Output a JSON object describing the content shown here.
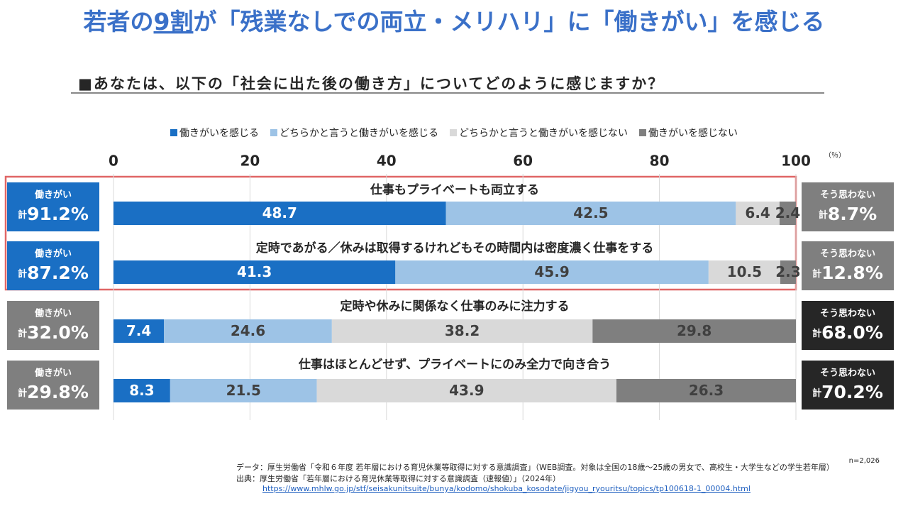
{
  "header": {
    "title_parts": [
      "若者の",
      "9割",
      "が「残業なしでの両立・メリハリ」に「働きがい」を感じる"
    ]
  },
  "chart_data": {
    "type": "bar",
    "orientation": "horizontal",
    "stacked": true,
    "title": "■あなたは、以下の「社会に出た後の働き方」についてどのように感じますか？",
    "categories": [
      "仕事もプライベートも両立する",
      "定時であがる／休みは取得するけれどもその時間内は密度濃く仕事をする",
      "定時や休みに関係なく仕事のみに注力する",
      "仕事はほとんどせず、プライベートにのみ全力で向き合う"
    ],
    "series": [
      {
        "name": "働きがいを感じる",
        "color": "#1a6fc4",
        "label_color": "#ffffff",
        "values": [
          48.7,
          41.3,
          7.4,
          8.3
        ]
      },
      {
        "name": "どちらかと言うと働きがいを感じる",
        "color": "#9dc3e6",
        "label_color": "#404040",
        "values": [
          42.5,
          45.9,
          24.6,
          21.5
        ]
      },
      {
        "name": "どちらかと言うと働きがいを感じない",
        "color": "#d9d9d9",
        "label_color": "#404040",
        "values": [
          6.4,
          10.5,
          38.2,
          43.9
        ]
      },
      {
        "name": "働きがいを感じない",
        "color": "#7f7f7f",
        "label_color": "#404040",
        "values": [
          2.4,
          2.3,
          29.8,
          26.3
        ]
      }
    ],
    "xlim": [
      0,
      100
    ],
    "xticks": [
      0,
      20,
      40,
      60,
      80,
      100
    ],
    "x_unit": "（％）",
    "grid": true,
    "legend": "top",
    "left_totals": {
      "label": "働きがい",
      "prefix": "計",
      "values": [
        91.2,
        87.2,
        32.0,
        29.8
      ],
      "value_labels": [
        "91.2%",
        "87.2%",
        "32.0%",
        "29.8%"
      ],
      "colors": [
        "#1a6fc4",
        "#1a6fc4",
        "#7f7f7f",
        "#7f7f7f"
      ]
    },
    "right_totals": {
      "label": "そう思わない",
      "prefix": "計",
      "values": [
        8.7,
        12.8,
        68.0,
        70.2
      ],
      "value_labels": [
        "8.7%",
        "12.8%",
        "68.0%",
        "70.2%"
      ],
      "colors": [
        "#7f7f7f",
        "#7f7f7f",
        "#262626",
        "#262626"
      ]
    },
    "note": "n=2,026"
  },
  "footer": {
    "data_line": "データ：厚生労働省「令和６年度 若年層における育児休業等取得に対する意識調査」（WEB調査。対象は全国の18歳～25歳の男女で、高校生・大学生などの学生若年層）",
    "source_line": "出典：厚生労働省「若年層における育児休業等取得に対する意識調査（速報値）」（2024年）",
    "url": "https://www.mhlw.go.jp/stf/seisakunitsuite/bunya/kodomo/shokuba_kosodate/jigyou_ryouritsu/topics/tp100618-1_00004.html"
  }
}
